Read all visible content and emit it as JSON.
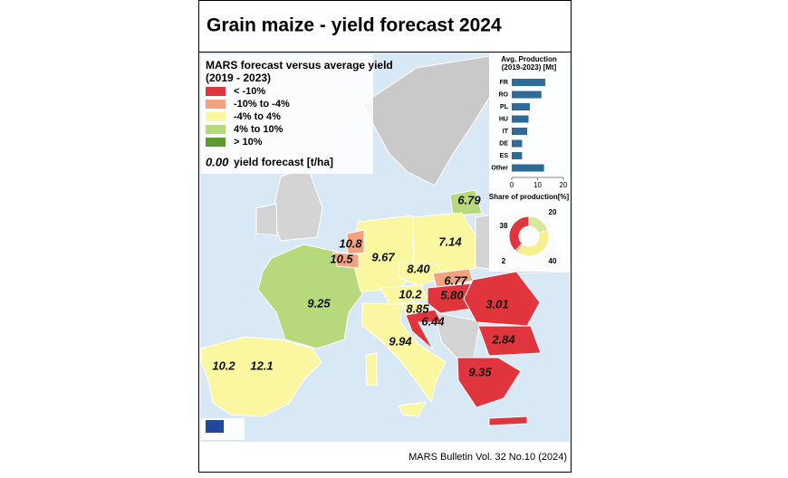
{
  "header": {
    "title": "Grain maize - yield forecast 2024"
  },
  "legend": {
    "title": "MARS forecast versus average yield",
    "subtitle": "(2019 - 2023)",
    "items": [
      {
        "label": "< -10%",
        "color": "#e0353d"
      },
      {
        "label": "-10% to -4%",
        "color": "#f2a27f"
      },
      {
        "label": "-4% to 4%",
        "color": "#fbf7a0"
      },
      {
        "label": "4% to 10%",
        "color": "#b7d97c"
      },
      {
        "label": "> 10%",
        "color": "#5e9a33"
      }
    ],
    "value_sample": "0.00",
    "value_label": "yield forecast [t/ha]"
  },
  "map_labels": [
    "6.79",
    "10.8",
    "10.5",
    "9.67",
    "7.14",
    "8.40",
    "6.77",
    "5.80",
    "10.2",
    "8.85",
    "6.44",
    "3.01",
    "9.25",
    "2.84",
    "9.94",
    "9.35",
    "10.2",
    "12.1"
  ],
  "production_chart": {
    "type": "bar",
    "title": "Avg. Production",
    "subtitle": "(2019-2023) [Mt]",
    "categories": [
      "FR",
      "RO",
      "PL",
      "HU",
      "IT",
      "DE",
      "ES",
      "Other"
    ],
    "values": [
      13,
      11.5,
      7,
      6.5,
      6,
      4,
      4,
      12.5
    ],
    "color": "#2e6b99",
    "xlim": [
      0,
      20
    ],
    "xticks": [
      0,
      10,
      20
    ]
  },
  "share_chart": {
    "type": "pie",
    "title": "Share of production[%]",
    "values": [
      20,
      40,
      2,
      38
    ],
    "colors": [
      "#d6e89a",
      "#f6f08c",
      "#f2a27f",
      "#e0353d"
    ]
  },
  "footer": "MARS Bulletin Vol. 32 No.10 (2024)"
}
